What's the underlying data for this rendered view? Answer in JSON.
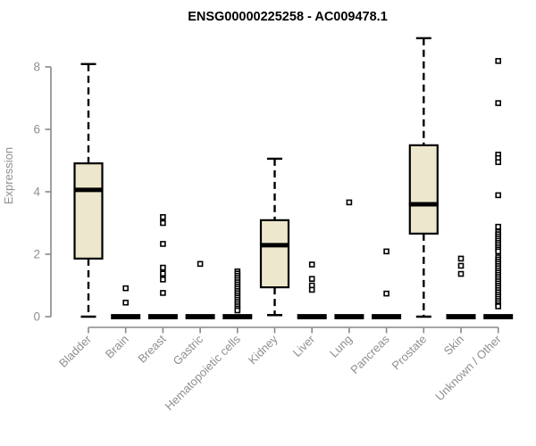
{
  "chart_data": {
    "type": "boxplot",
    "title": "ENSG00000225258 - AC009478.1",
    "xlabel": "",
    "ylabel": "Expression",
    "ylim": [
      0,
      8.95
    ],
    "yticks": [
      0,
      2,
      4,
      6,
      8
    ],
    "grid": false,
    "legend": "none",
    "colors": {
      "box_fill": "#EDE8CD",
      "box_stroke": "#000000",
      "median": "#000000",
      "whisker": "#000000",
      "outlier_stroke": "#000000",
      "outlier_fill": "#ffffff",
      "axis": "#898989",
      "label": "#8f8f8f",
      "title": "#000000",
      "background": "#ffffff"
    },
    "categories": [
      "Bladder",
      "Brain",
      "Breast",
      "Gastric",
      "Hematopoietic cells",
      "Kidney",
      "Liver",
      "Lung",
      "Pancreas",
      "Prostate",
      "Skin",
      "Unknown / Other"
    ],
    "boxes": [
      {
        "category": "Bladder",
        "collapsed": false,
        "whisker_low": 0,
        "q1": 1.86,
        "median": 4.06,
        "q3": 4.91,
        "whisker_high": 8.09,
        "outliers": []
      },
      {
        "category": "Brain",
        "collapsed": true,
        "whisker_low": 0,
        "q1": 0,
        "median": 0,
        "q3": 0,
        "whisker_high": 0,
        "outliers": [
          0.91,
          0.45
        ]
      },
      {
        "category": "Breast",
        "collapsed": true,
        "whisker_low": 0,
        "q1": 0,
        "median": 0,
        "q3": 0,
        "whisker_high": 0,
        "outliers": [
          3.19,
          3.0,
          2.33,
          1.57,
          1.38,
          1.19,
          0.76
        ]
      },
      {
        "category": "Gastric",
        "collapsed": true,
        "whisker_low": 0,
        "q1": 0,
        "median": 0,
        "q3": 0,
        "whisker_high": 0,
        "outliers": [
          1.69
        ]
      },
      {
        "category": "Hematopoietic cells",
        "collapsed": true,
        "whisker_low": 0,
        "q1": 0,
        "median": 0,
        "q3": 0,
        "whisker_high": 0,
        "outliers": [
          1.45,
          1.38,
          1.31,
          1.24,
          1.17,
          1.1,
          1.03,
          0.96,
          0.89,
          0.82,
          0.75,
          0.68,
          0.61,
          0.54,
          0.47,
          0.4,
          0.33,
          0.26,
          0.2
        ]
      },
      {
        "category": "Kidney",
        "collapsed": false,
        "whisker_low": 0.05,
        "q1": 0.94,
        "median": 2.29,
        "q3": 3.09,
        "whisker_high": 5.06,
        "outliers": []
      },
      {
        "category": "Liver",
        "collapsed": true,
        "whisker_low": 0,
        "q1": 0,
        "median": 0,
        "q3": 0,
        "whisker_high": 0,
        "outliers": [
          1.67,
          1.21,
          1.0,
          0.86
        ]
      },
      {
        "category": "Lung",
        "collapsed": true,
        "whisker_low": 0,
        "q1": 0,
        "median": 0,
        "q3": 0,
        "whisker_high": 0,
        "outliers": [
          3.66
        ]
      },
      {
        "category": "Pancreas",
        "collapsed": true,
        "whisker_low": 0,
        "q1": 0,
        "median": 0,
        "q3": 0,
        "whisker_high": 0,
        "outliers": [
          2.09,
          0.74
        ]
      },
      {
        "category": "Prostate",
        "collapsed": false,
        "whisker_low": 0,
        "q1": 2.66,
        "median": 3.6,
        "q3": 5.49,
        "whisker_high": 8.92,
        "outliers": []
      },
      {
        "category": "Skin",
        "collapsed": true,
        "whisker_low": 0,
        "q1": 0,
        "median": 0,
        "q3": 0,
        "whisker_high": 0,
        "outliers": [
          1.86,
          1.63,
          1.37
        ]
      },
      {
        "category": "Unknown / Other",
        "collapsed": true,
        "whisker_low": 0,
        "q1": 0,
        "median": 0,
        "q3": 0,
        "whisker_high": 0,
        "outliers": [
          8.19,
          6.84,
          5.19,
          5.08,
          4.95,
          3.89,
          2.88,
          2.71,
          2.64,
          2.57,
          2.5,
          2.43,
          2.36,
          2.29,
          2.22,
          2.15,
          2.09,
          1.9,
          1.83,
          1.76,
          1.69,
          1.62,
          1.55,
          1.48,
          1.41,
          1.34,
          1.27,
          1.2,
          1.13,
          1.06,
          0.99,
          0.92,
          0.85,
          0.78,
          0.71,
          0.64,
          0.57,
          0.5,
          0.43,
          0.36,
          0.33
        ]
      }
    ]
  }
}
